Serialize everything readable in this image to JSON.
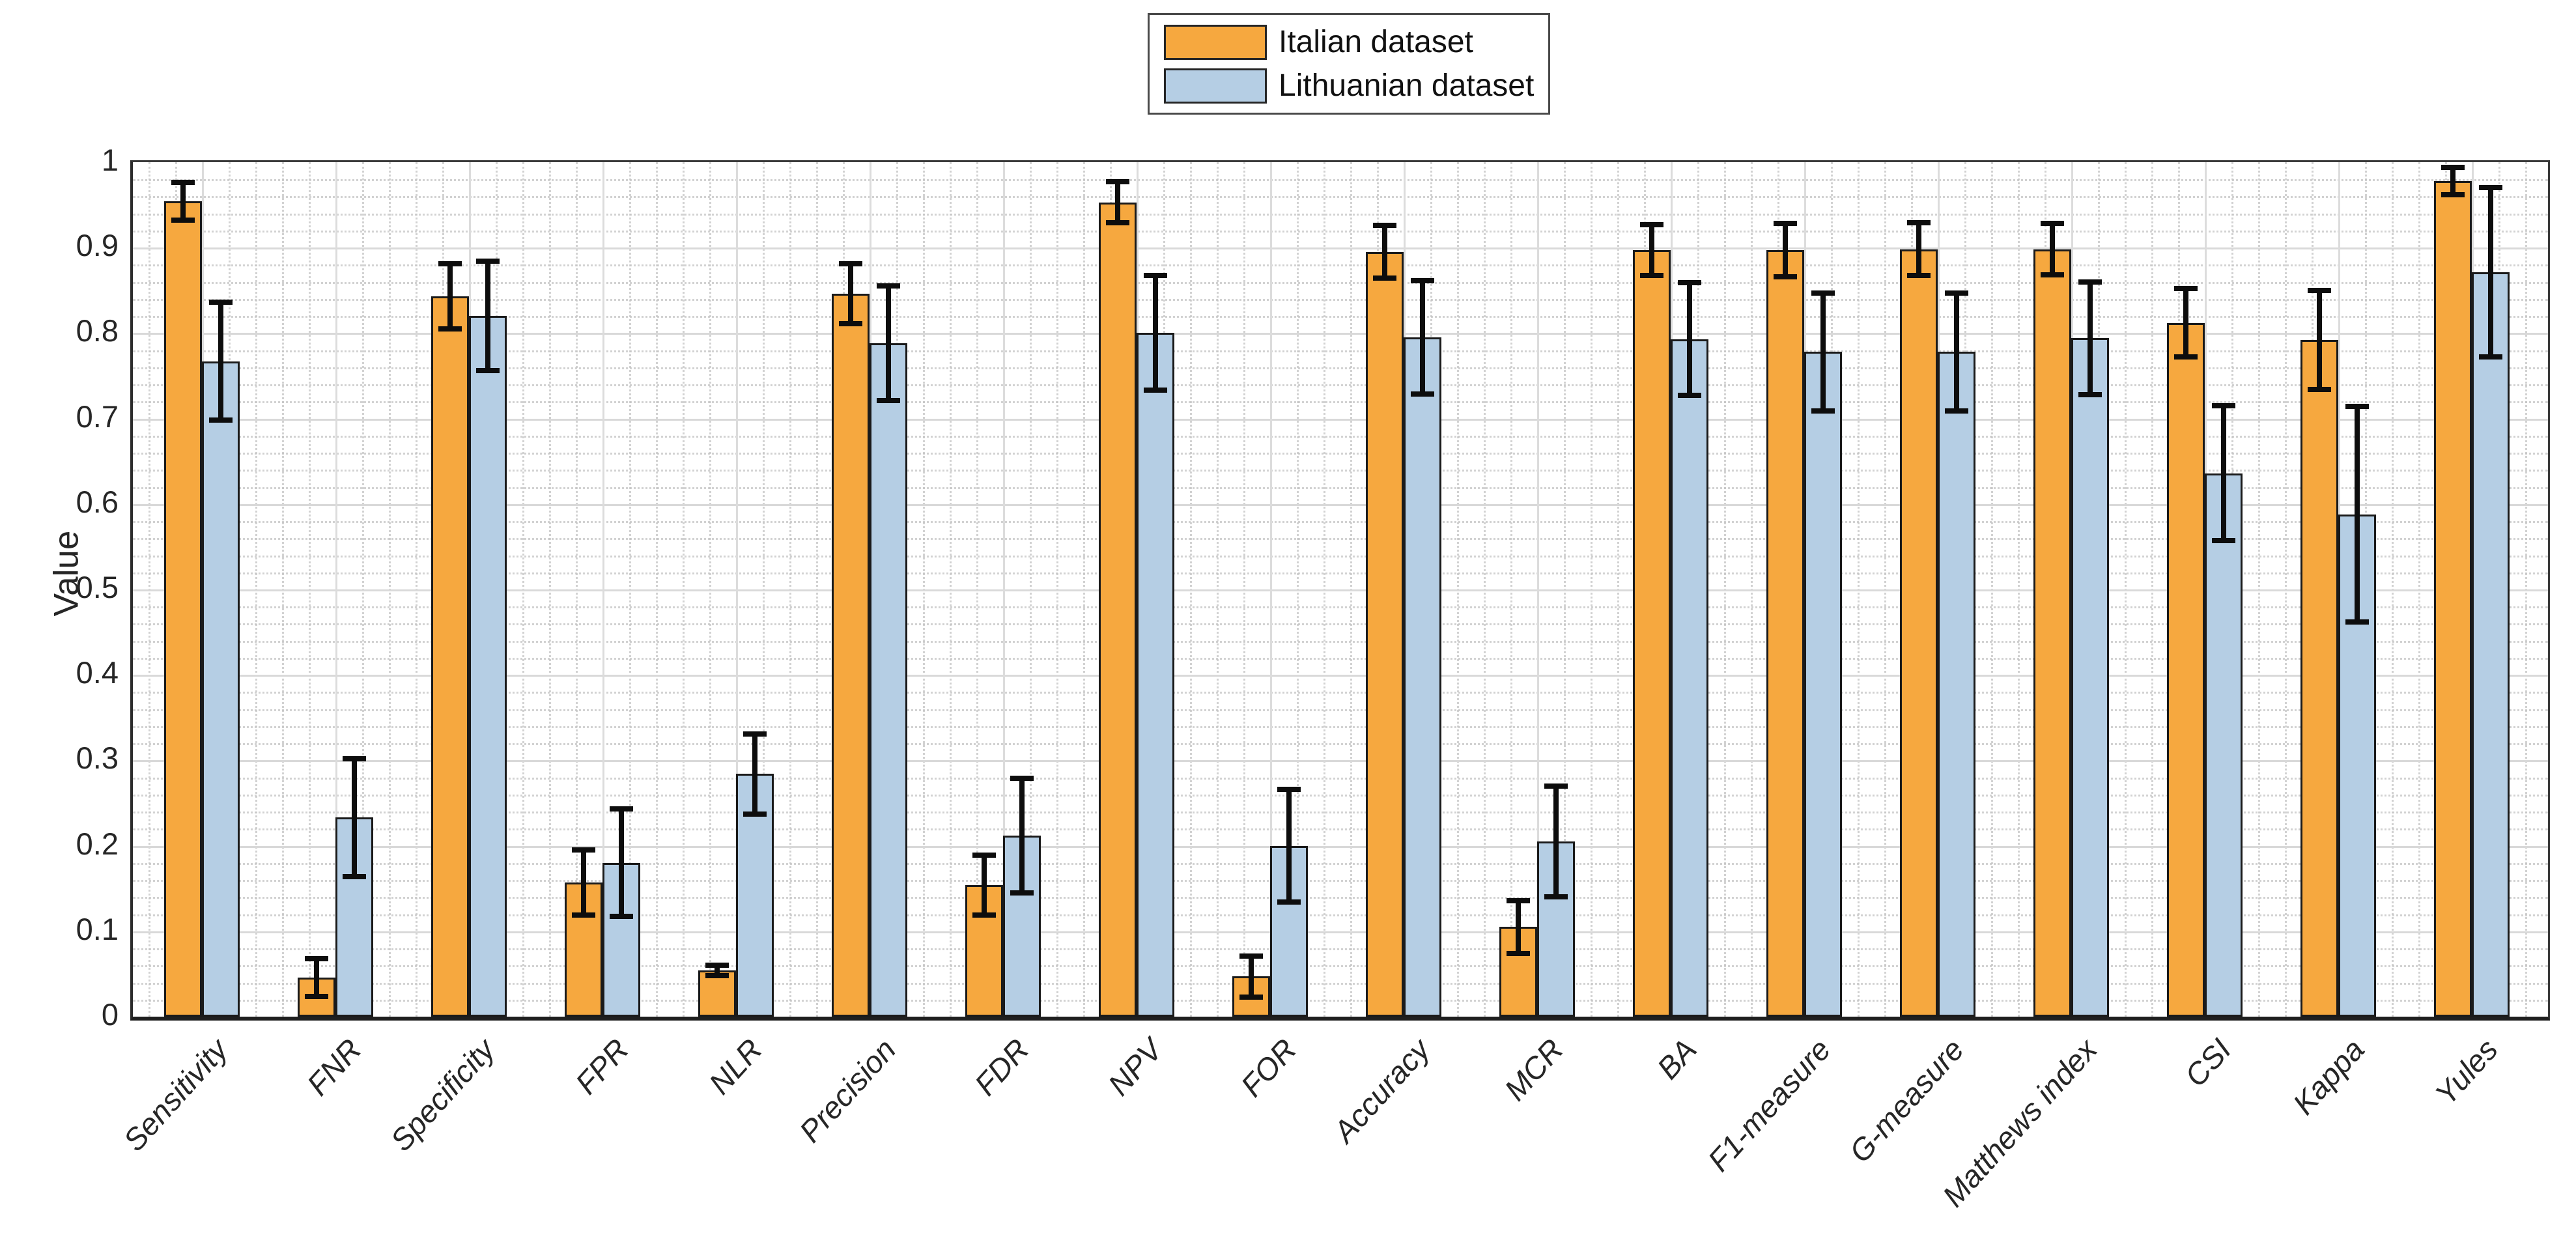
{
  "chart_data": {
    "type": "bar",
    "title": "",
    "xlabel": "",
    "ylabel": "Value",
    "ylim": [
      0,
      1
    ],
    "ytick_labels": [
      "0",
      "0.1",
      "0.2",
      "0.3",
      "0.4",
      "0.5",
      "0.6",
      "0.7",
      "0.8",
      "0.9",
      "1"
    ],
    "grid": {
      "y_major": true,
      "x_major": true,
      "y_minor_step": 0.02,
      "x_minor_divisions": 5,
      "minor_style": "dotted"
    },
    "legend_position": "top-center",
    "error_bars": true,
    "categories": [
      "Sensitivity",
      "FNR",
      "Specificity",
      "FPR",
      "NLR",
      "Precision",
      "FDR",
      "NPV",
      "FOR",
      "Accuracy",
      "MCR",
      "BA",
      "F1-measure",
      "G-measure",
      "Matthews index",
      "CSI",
      "Kappa",
      "Yules"
    ],
    "series": [
      {
        "name": "Italian dataset",
        "color": "#F6A83F",
        "edge_color": "#1a1a1a",
        "values": [
          0.954,
          0.046,
          0.843,
          0.157,
          0.054,
          0.846,
          0.154,
          0.953,
          0.047,
          0.895,
          0.105,
          0.897,
          0.897,
          0.898,
          0.898,
          0.812,
          0.792,
          0.978
        ],
        "errors": [
          0.022,
          0.022,
          0.038,
          0.038,
          0.006,
          0.035,
          0.035,
          0.024,
          0.024,
          0.031,
          0.031,
          0.03,
          0.031,
          0.031,
          0.03,
          0.04,
          0.058,
          0.016
        ]
      },
      {
        "name": "Lithuanian dataset",
        "color": "#B5CEE4",
        "edge_color": "#1a1a1a",
        "values": [
          0.767,
          0.233,
          0.82,
          0.18,
          0.284,
          0.788,
          0.212,
          0.8,
          0.2,
          0.795,
          0.205,
          0.793,
          0.778,
          0.778,
          0.794,
          0.636,
          0.588,
          0.871
        ],
        "errors": [
          0.069,
          0.069,
          0.064,
          0.063,
          0.047,
          0.067,
          0.067,
          0.067,
          0.066,
          0.066,
          0.065,
          0.066,
          0.069,
          0.069,
          0.066,
          0.079,
          0.126,
          0.099
        ]
      }
    ]
  },
  "colors": {
    "background": "#ffffff",
    "major_grid": "#d9d9d9",
    "minor_grid": "#c4c4c4",
    "axis": "#2b2b2b",
    "error_bar": "#0d0d0d",
    "text": "#262626"
  }
}
